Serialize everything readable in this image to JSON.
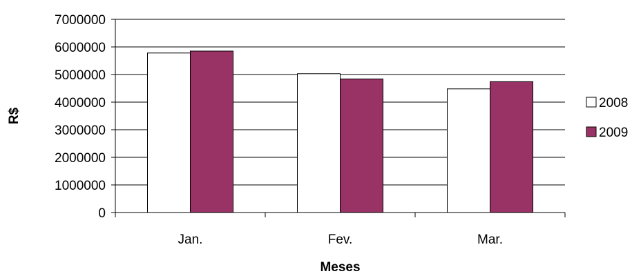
{
  "chart_data": {
    "type": "bar",
    "title": "",
    "xlabel": "Meses",
    "ylabel": "R$",
    "categories": [
      "Jan.",
      "Fev.",
      "Mar."
    ],
    "series": [
      {
        "name": "2008",
        "values": [
          5780000,
          5030000,
          4480000
        ],
        "color": "#ffffff"
      },
      {
        "name": "2009",
        "values": [
          5850000,
          4840000,
          4740000
        ],
        "color": "#993366"
      }
    ],
    "ylim": [
      0,
      7000000
    ],
    "yticks": [
      "0",
      "1000000",
      "2000000",
      "3000000",
      "4000000",
      "5000000",
      "6000000",
      "7000000"
    ],
    "grid": true,
    "legend_position": "right"
  }
}
